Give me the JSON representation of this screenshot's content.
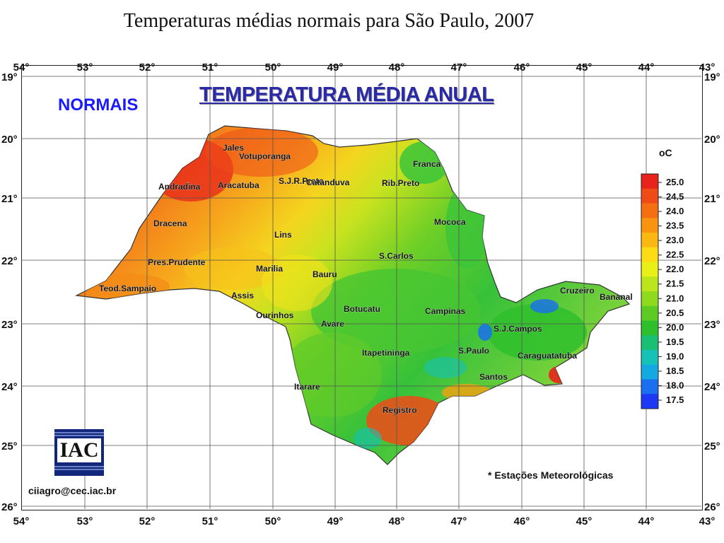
{
  "page_title": "Temperaturas médias normais para São Paulo, 2007",
  "map": {
    "header_left": "NORMAIS",
    "header_title": "TEMPERATURA MÉDIA ANUAL",
    "longitude_labels": [
      "54°",
      "53°",
      "52°",
      "51°",
      "50°",
      "49°",
      "48°",
      "47°",
      "46°",
      "45°",
      "44°",
      "43°"
    ],
    "latitude_labels": [
      "19°",
      "20°",
      "21°",
      "22°",
      "23°",
      "24°",
      "25°",
      "26°"
    ],
    "cities": [
      "Jales",
      "Votuporanga",
      "Franca",
      "Andradina",
      "S.J.R.Preto",
      "Catanduva",
      "Rib.Preto",
      "Aracatuba",
      "Mococa",
      "Dracena",
      "Lins",
      "S.Carlos",
      "Pres.Prudente",
      "Marilia",
      "Bauru",
      "Teod.Sampaio",
      "Assis",
      "Cruzeiro",
      "Bananal",
      "Ourinhos",
      "Botucatu",
      "Campinas",
      "Avare",
      "S.J.Campos",
      "Itapetininga",
      "S.Paulo",
      "Caraguatatuba",
      "Santos",
      "Itarare",
      "Registro"
    ],
    "footnote": "* Estações Meteorológicas",
    "email": "ciiagro@cec.iac.br",
    "logo_text": "IAC"
  },
  "legend": {
    "unit": "oC",
    "values": [
      "25.0",
      "24.5",
      "24.0",
      "23.5",
      "23.0",
      "22.5",
      "22.0",
      "21.5",
      "21.0",
      "20.5",
      "20.0",
      "19.5",
      "19.0",
      "18.5",
      "18.0",
      "17.5"
    ],
    "colors": [
      "#e8231c",
      "#f04a17",
      "#f46e12",
      "#f89410",
      "#fcb812",
      "#fbdc16",
      "#e9ef18",
      "#bce61b",
      "#8fd91f",
      "#5ecb24",
      "#2fbf2d",
      "#19c074",
      "#16c2b8",
      "#14a9e0",
      "#1a6ef0",
      "#1c38f5"
    ]
  }
}
